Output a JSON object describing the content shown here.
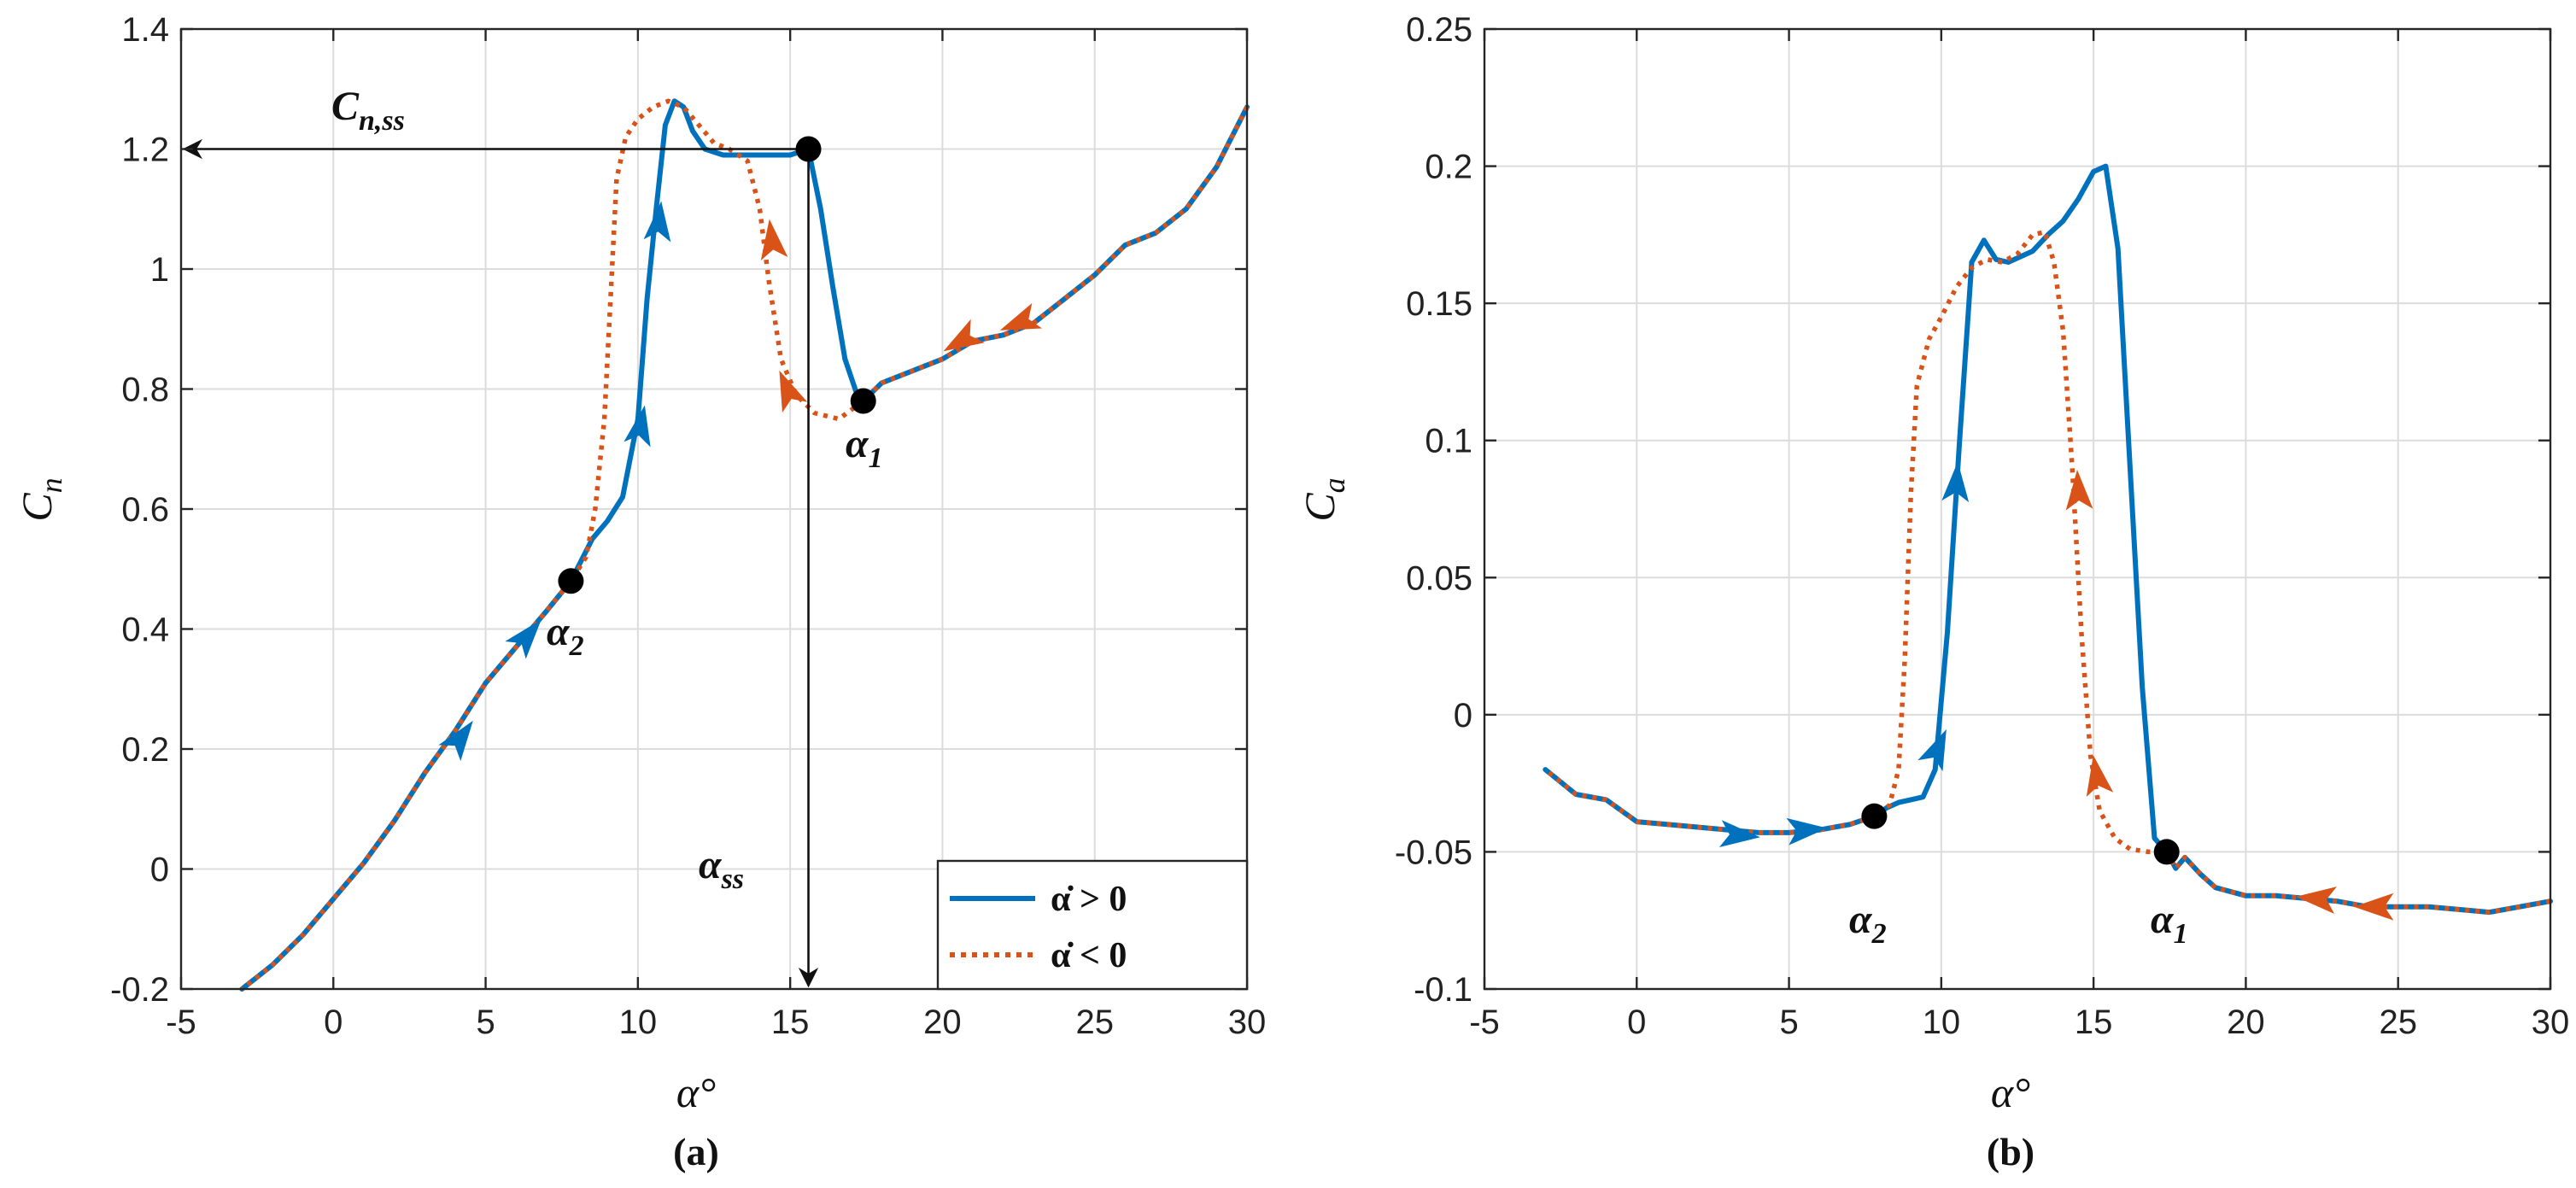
{
  "colors": {
    "increasing": "#0072BD",
    "decreasing": "#D95319",
    "axis": "#262626",
    "grid": "#dcdcdc",
    "marker": "#000000"
  },
  "chart_data": [
    {
      "type": "line",
      "panel_label": "(a)",
      "xlabel": "α°",
      "ylabel_main": "C",
      "ylabel_sub": "n",
      "xlim": [
        -5,
        30
      ],
      "ylim": [
        -0.2,
        1.4
      ],
      "xticks": [
        -5,
        0,
        5,
        10,
        15,
        20,
        25,
        30
      ],
      "xtick_labels": [
        "-5",
        "0",
        "5",
        "10",
        "15",
        "20",
        "25",
        "30"
      ],
      "yticks": [
        -0.2,
        0,
        0.2,
        0.4,
        0.6,
        0.8,
        1,
        1.2,
        1.4
      ],
      "ytick_labels": [
        "-0.2",
        "0",
        "0.2",
        "0.4",
        "0.6",
        "0.8",
        "1",
        "1.2",
        "1.4"
      ],
      "grid": true,
      "legend": {
        "placement": "bottom-right",
        "entries": [
          {
            "label": "α̇ > 0",
            "style": "solid",
            "series": "increasing"
          },
          {
            "label": "α̇ < 0",
            "style": "dotted",
            "series": "decreasing"
          }
        ]
      },
      "series": [
        {
          "name": "α̇ > 0",
          "style": "solid",
          "x": [
            -3,
            -2,
            -1,
            0,
            1,
            2,
            3,
            4,
            5,
            6,
            7,
            7.8,
            8.5,
            9,
            9.5,
            10,
            10.3,
            10.6,
            10.9,
            11.2,
            11.5,
            11.8,
            12.2,
            12.8,
            13.5,
            14.2,
            15,
            15.6,
            16,
            16.4,
            16.8,
            17.2,
            17.4,
            18,
            19,
            20,
            21,
            22,
            23,
            24,
            25,
            26,
            27,
            28,
            29,
            30
          ],
          "y": [
            -0.2,
            -0.16,
            -0.11,
            -0.05,
            0.01,
            0.08,
            0.16,
            0.23,
            0.31,
            0.37,
            0.43,
            0.48,
            0.55,
            0.58,
            0.62,
            0.75,
            0.95,
            1.1,
            1.24,
            1.28,
            1.27,
            1.23,
            1.2,
            1.19,
            1.19,
            1.19,
            1.19,
            1.2,
            1.1,
            0.97,
            0.85,
            0.79,
            0.78,
            0.81,
            0.83,
            0.85,
            0.88,
            0.89,
            0.91,
            0.95,
            0.99,
            1.04,
            1.06,
            1.1,
            1.17,
            1.27
          ]
        },
        {
          "name": "α̇ < 0",
          "style": "dotted",
          "x": [
            30,
            29,
            28,
            27,
            26,
            25,
            24,
            23,
            22,
            21,
            20,
            19,
            18,
            17.4,
            16.6,
            15.8,
            15.2,
            14.7,
            14.3,
            14,
            13.6,
            13,
            12.5,
            12,
            11.5,
            11,
            10.5,
            10,
            9.6,
            9.3,
            9.1,
            8.9,
            8.6,
            8.3,
            7.8,
            7,
            6,
            5,
            4,
            3,
            2,
            1,
            0,
            -1,
            -2,
            -3
          ],
          "y": [
            1.27,
            1.17,
            1.1,
            1.06,
            1.04,
            0.99,
            0.95,
            0.91,
            0.89,
            0.88,
            0.85,
            0.83,
            0.81,
            0.78,
            0.75,
            0.76,
            0.79,
            0.85,
            0.98,
            1.1,
            1.18,
            1.2,
            1.21,
            1.24,
            1.27,
            1.28,
            1.27,
            1.25,
            1.22,
            1.15,
            0.95,
            0.75,
            0.6,
            0.52,
            0.48,
            0.43,
            0.37,
            0.31,
            0.23,
            0.16,
            0.08,
            0.01,
            -0.05,
            -0.11,
            -0.16,
            -0.2
          ]
        }
      ],
      "markers": [
        {
          "label": "α",
          "sub": "2",
          "x": 7.8,
          "y": 0.48
        },
        {
          "label": "α",
          "sub": "1",
          "x": 17.4,
          "y": 0.78
        },
        {
          "label": "",
          "sub": "",
          "x": 15.6,
          "y": 1.2
        }
      ],
      "annotations": [
        {
          "label": "C",
          "sub": "n,ss"
        },
        {
          "label": "α",
          "sub": "ss"
        }
      ],
      "arrows_increasing": [
        [
          4.2,
          0.22
        ],
        [
          6.4,
          0.39
        ],
        [
          10.1,
          0.74
        ],
        [
          10.7,
          1.08
        ]
      ],
      "arrows_decreasing": [
        [
          22.5,
          0.91
        ],
        [
          20.6,
          0.88
        ],
        [
          14.9,
          0.8
        ],
        [
          14.4,
          1.05
        ]
      ]
    },
    {
      "type": "line",
      "panel_label": "(b)",
      "xlabel": "α°",
      "ylabel_main": "C",
      "ylabel_sub": "a",
      "xlim": [
        -5,
        30
      ],
      "ylim": [
        -0.1,
        0.25
      ],
      "xticks": [
        -5,
        0,
        5,
        10,
        15,
        20,
        25,
        30
      ],
      "xtick_labels": [
        "-5",
        "0",
        "5",
        "10",
        "15",
        "20",
        "25",
        "30"
      ],
      "yticks": [
        -0.1,
        -0.05,
        0,
        0.05,
        0.1,
        0.15,
        0.2,
        0.25
      ],
      "ytick_labels": [
        "-0.1",
        "-0.05",
        "0",
        "0.05",
        "0.1",
        "0.15",
        "0.2",
        "0.25"
      ],
      "grid": true,
      "series": [
        {
          "name": "α̇ > 0",
          "style": "solid",
          "x": [
            -3,
            -2,
            -1,
            0,
            1,
            2,
            3,
            4,
            5,
            6,
            7,
            7.8,
            8.2,
            8.6,
            9,
            9.4,
            9.8,
            10.2,
            10.6,
            11,
            11.4,
            11.8,
            12.2,
            12.6,
            13,
            13.5,
            14,
            14.5,
            15,
            15.4,
            15.8,
            16.2,
            16.6,
            17,
            17.4,
            17.7,
            18,
            18.5,
            19,
            20,
            21,
            22,
            23,
            24,
            25,
            26,
            27,
            28,
            29,
            30
          ],
          "y": [
            -0.02,
            -0.029,
            -0.031,
            -0.039,
            -0.04,
            -0.041,
            -0.042,
            -0.043,
            -0.043,
            -0.042,
            -0.04,
            -0.037,
            -0.034,
            -0.032,
            -0.031,
            -0.03,
            -0.02,
            0.03,
            0.1,
            0.165,
            0.173,
            0.166,
            0.165,
            0.167,
            0.169,
            0.175,
            0.18,
            0.188,
            0.198,
            0.2,
            0.17,
            0.09,
            0.01,
            -0.045,
            -0.05,
            -0.056,
            -0.052,
            -0.058,
            -0.063,
            -0.066,
            -0.066,
            -0.067,
            -0.068,
            -0.07,
            -0.07,
            -0.07,
            -0.071,
            -0.072,
            -0.07,
            -0.068
          ]
        },
        {
          "name": "α̇ < 0",
          "style": "dotted",
          "x": [
            30,
            29,
            28,
            27,
            26,
            25,
            24,
            23,
            22,
            21,
            20,
            19,
            18.5,
            18,
            17.7,
            17.4,
            16.8,
            16.2,
            15.7,
            15.2,
            14.9,
            14.6,
            14.3,
            14,
            13.7,
            13.4,
            13,
            12.5,
            12,
            11.5,
            11,
            10.5,
            10,
            9.6,
            9.2,
            9,
            8.8,
            8.6,
            8.3,
            7.8,
            7,
            6,
            5,
            4,
            3,
            2,
            1,
            0,
            -1,
            -2,
            -3
          ],
          "y": [
            -0.068,
            -0.07,
            -0.072,
            -0.071,
            -0.07,
            -0.07,
            -0.07,
            -0.068,
            -0.067,
            -0.066,
            -0.066,
            -0.063,
            -0.058,
            -0.052,
            -0.056,
            -0.05,
            -0.05,
            -0.049,
            -0.045,
            -0.035,
            -0.015,
            0.03,
            0.09,
            0.14,
            0.165,
            0.176,
            0.175,
            0.168,
            0.165,
            0.166,
            0.163,
            0.156,
            0.145,
            0.137,
            0.12,
            0.08,
            0.02,
            -0.02,
            -0.033,
            -0.037,
            -0.04,
            -0.042,
            -0.043,
            -0.043,
            -0.042,
            -0.041,
            -0.04,
            -0.039,
            -0.031,
            -0.029,
            -0.02
          ]
        }
      ],
      "markers": [
        {
          "label": "α",
          "sub": "2",
          "x": 7.8,
          "y": -0.037
        },
        {
          "label": "α",
          "sub": "1",
          "x": 17.4,
          "y": -0.05
        }
      ],
      "arrows_increasing": [
        [
          3.4,
          -0.044
        ],
        [
          5.6,
          -0.042
        ],
        [
          9.9,
          -0.012
        ],
        [
          10.5,
          0.085
        ]
      ],
      "arrows_decreasing": [
        [
          24.2,
          -0.07
        ],
        [
          22.3,
          -0.067
        ],
        [
          15.1,
          -0.022
        ],
        [
          14.5,
          0.082
        ]
      ]
    }
  ]
}
